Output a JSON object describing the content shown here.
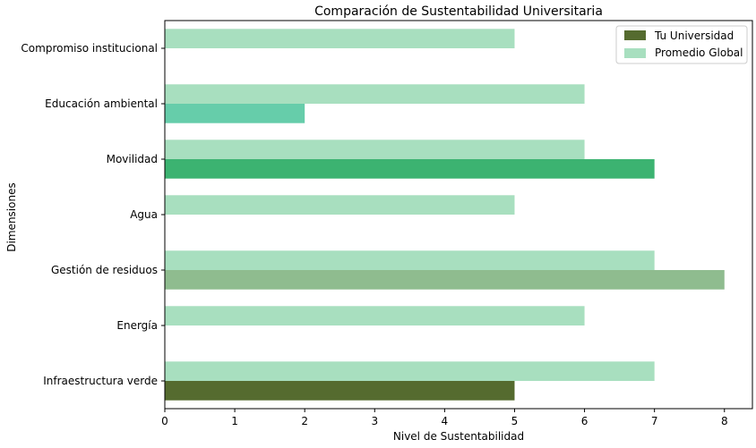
{
  "chart_data": {
    "type": "bar",
    "orientation": "horizontal",
    "title": "Comparación de Sustentabilidad Universitaria",
    "xlabel": "Nivel de Sustentabilidad",
    "ylabel": "Dimensiones",
    "xlim": [
      0,
      8.4
    ],
    "xticks": [
      0,
      1,
      2,
      3,
      4,
      5,
      6,
      7,
      8
    ],
    "grid": false,
    "legend_position": "top-right",
    "categories": [
      "Infraestructura verde",
      "Energía",
      "Gestión de residuos",
      "Agua",
      "Movilidad",
      "Educación ambiental",
      "Compromiso institucional"
    ],
    "series": [
      {
        "name": "Tu Universidad",
        "values": [
          5,
          0,
          8,
          0,
          7,
          2,
          0
        ],
        "legend_color": "#556b2f",
        "bar_colors": [
          "#556b2f",
          "#556b2f",
          "#8fbc8f",
          "#556b2f",
          "#3cb371",
          "#66cdaa",
          "#556b2f"
        ]
      },
      {
        "name": "Promedio Global",
        "values": [
          7,
          6,
          7,
          5,
          6,
          6,
          5
        ],
        "color": "#a8dfbf"
      }
    ]
  }
}
